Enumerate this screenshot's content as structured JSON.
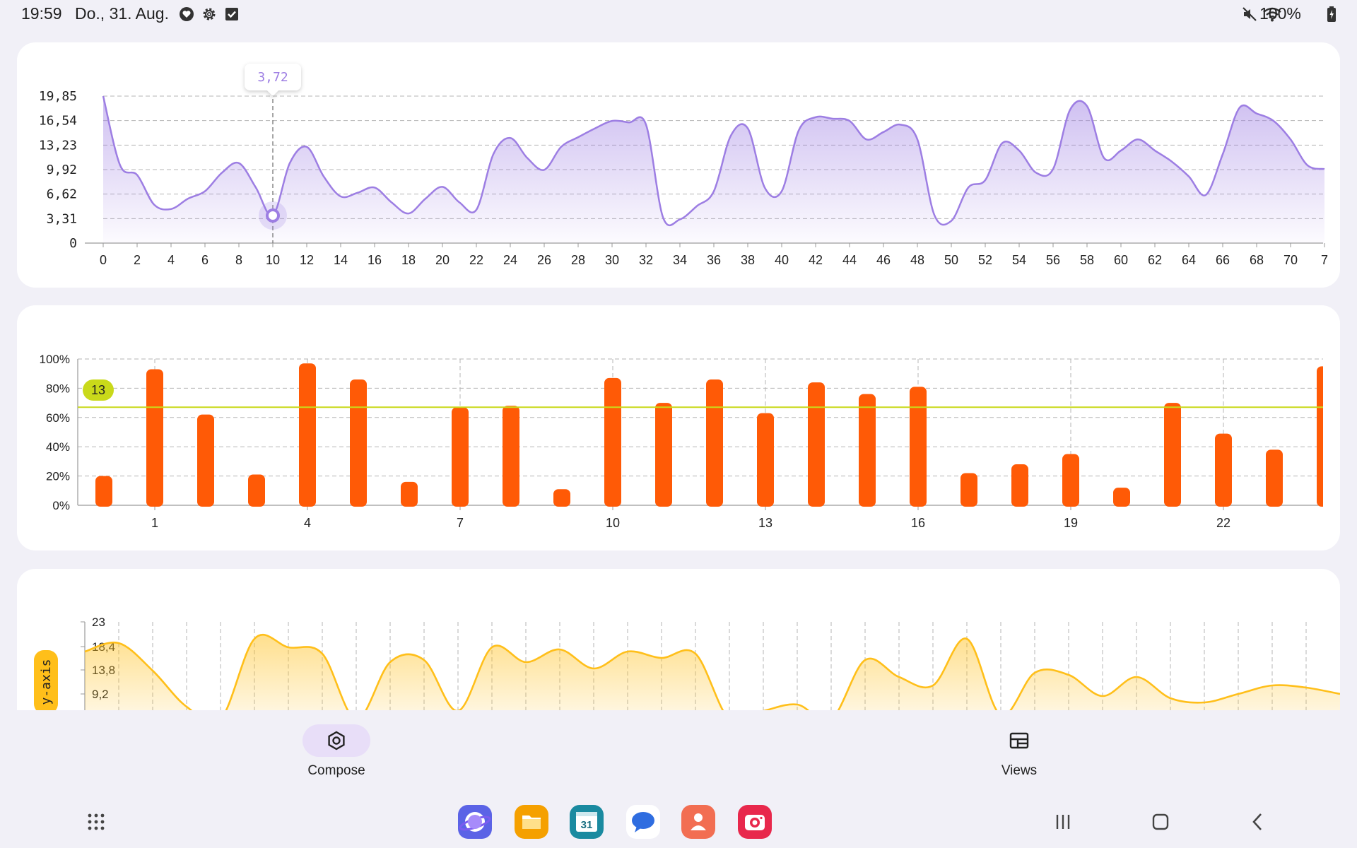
{
  "status_bar": {
    "time": "19:59",
    "date": "Do., 31. Aug.",
    "battery": "100%",
    "left_icons": [
      "shield-heart-icon",
      "gear-icon",
      "checkbox-icon"
    ],
    "right_icons": [
      "mute-icon",
      "wifi-icon",
      "battery-icon"
    ]
  },
  "colors": {
    "line_chart": "#9d7ee3",
    "bar_chart": "#ff5a06",
    "threshold_line": "#c9d91a",
    "area_chart": "#ffbf1a",
    "selected_nav": "#e8def8"
  },
  "chart_data": [
    {
      "type": "area",
      "tooltip": "3,72",
      "selected_x": 10,
      "y_ticks": [
        "19,85",
        "16,54",
        "13,23",
        "9,92",
        "6,62",
        "3,31",
        "0"
      ],
      "ylim": [
        0,
        19.85
      ],
      "x_ticks": [
        "0",
        "2",
        "4",
        "6",
        "8",
        "10",
        "12",
        "14",
        "16",
        "18",
        "20",
        "22",
        "24",
        "26",
        "28",
        "30",
        "32",
        "34",
        "36",
        "38",
        "40",
        "42",
        "44",
        "46",
        "48",
        "50",
        "52",
        "54",
        "56",
        "58",
        "60",
        "62",
        "64",
        "66",
        "68",
        "70",
        "7"
      ],
      "x": [
        0,
        1,
        2,
        3,
        4,
        5,
        6,
        7,
        8,
        9,
        10,
        11,
        12,
        13,
        14,
        15,
        16,
        17,
        18,
        19,
        20,
        21,
        22,
        23,
        24,
        25,
        26,
        27,
        28,
        29,
        30,
        31,
        32,
        33,
        34,
        35,
        36,
        37,
        38,
        39,
        40,
        41,
        42,
        43,
        44,
        45,
        46,
        47,
        48,
        49,
        50,
        51,
        52,
        53,
        54,
        55,
        56,
        57,
        58,
        59,
        60,
        61,
        62,
        63,
        64,
        65,
        66,
        67,
        68,
        69,
        70,
        71,
        72
      ],
      "values": [
        19.85,
        10.5,
        9.2,
        5.2,
        4.6,
        6.0,
        7.0,
        9.5,
        10.8,
        7.5,
        3.72,
        10.8,
        13.0,
        9.0,
        6.3,
        6.8,
        7.5,
        5.5,
        4.0,
        6.0,
        7.6,
        5.5,
        4.5,
        12.0,
        14.2,
        11.5,
        9.9,
        13.0,
        14.3,
        15.5,
        16.5,
        16.3,
        16.0,
        3.5,
        3.2,
        5.0,
        7.0,
        14.5,
        15.5,
        7.5,
        7.0,
        15.2,
        17.0,
        16.8,
        16.5,
        14.0,
        15.0,
        16.0,
        14.0,
        3.8,
        3.0,
        7.5,
        8.5,
        13.5,
        12.5,
        9.5,
        10.0,
        18.0,
        18.5,
        11.5,
        12.5,
        14.0,
        12.5,
        11.0,
        9.0,
        6.5,
        12.0,
        18.3,
        17.5,
        16.5,
        14.0,
        10.5,
        10.0
      ]
    },
    {
      "type": "bar",
      "threshold_label": "13",
      "threshold_value": 0.67,
      "y_ticks": [
        "100%",
        "80%",
        "60%",
        "40%",
        "20%",
        "0%"
      ],
      "ylim": [
        0,
        1
      ],
      "x_ticks": [
        "1",
        "4",
        "7",
        "10",
        "13",
        "16",
        "19",
        "22"
      ],
      "x": [
        0,
        1,
        2,
        3,
        4,
        5,
        6,
        7,
        8,
        9,
        10,
        11,
        12,
        13,
        14,
        15,
        16,
        17,
        18,
        19,
        20,
        21,
        22,
        23,
        24
      ],
      "values": [
        0.2,
        0.93,
        0.62,
        0.21,
        0.97,
        0.86,
        0.16,
        0.67,
        0.68,
        0.11,
        0.87,
        0.7,
        0.86,
        0.63,
        0.84,
        0.76,
        0.81,
        0.22,
        0.28,
        0.35,
        0.12,
        0.7,
        0.49,
        0.38,
        0.95
      ]
    },
    {
      "type": "area",
      "ylabel": "y-axis",
      "y_ticks": [
        "23",
        "18,4",
        "13,8",
        "9,2"
      ],
      "x": [
        0,
        1,
        2,
        3,
        4,
        5,
        6,
        7,
        8,
        9,
        10,
        11,
        12,
        13,
        14,
        15,
        16,
        17,
        18,
        19,
        20,
        21,
        22,
        23,
        24,
        25,
        26,
        27,
        28,
        29,
        30,
        31,
        32,
        33,
        34,
        35,
        36,
        37
      ],
      "values": [
        16.0,
        18.0,
        11.5,
        3.0,
        0.0,
        19.0,
        17.0,
        15.5,
        0.0,
        13.5,
        14.0,
        2.0,
        17.0,
        13.5,
        16.5,
        12.0,
        16.0,
        14.5,
        15.5,
        0.0,
        2.0,
        3.5,
        0.0,
        14.0,
        10.0,
        8.0,
        19.0,
        1.0,
        11.0,
        10.5,
        5.5,
        10.0,
        5.0,
        4.0,
        6.0,
        8.0,
        7.5,
        6.0
      ]
    }
  ],
  "nav": {
    "items": [
      {
        "label": "Compose",
        "icon": "compose-icon",
        "selected": true
      },
      {
        "label": "Views",
        "icon": "views-icon",
        "selected": false
      }
    ]
  },
  "taskbar": {
    "apps": [
      "samsung-internet-icon",
      "my-files-icon",
      "calendar-icon",
      "messages-icon",
      "contacts-icon",
      "camera-icon"
    ],
    "calendar_day": "31",
    "buttons": [
      "apps-grid-icon",
      "recents-icon",
      "home-icon",
      "back-icon"
    ]
  }
}
